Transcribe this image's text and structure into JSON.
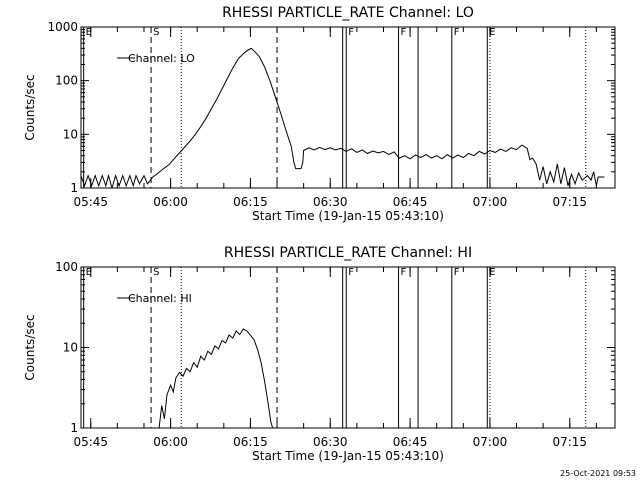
{
  "footer_timestamp": "25-Oct-2021 09:53",
  "colors": {
    "background": "#ffffff",
    "foreground": "#000000"
  },
  "chart_data": [
    {
      "type": "line",
      "title": "RHESSI PARTICLE_RATE Channel: LO",
      "xlabel": "Start Time (19-Jan-15 05:43:10)",
      "ylabel": "Counts/sec",
      "y_scale": "log",
      "ylim": [
        1,
        1000
      ],
      "xlim": [
        "05:43:10",
        "07:23:30"
      ],
      "y_ticks": [
        {
          "value": 1,
          "label": "1"
        },
        {
          "value": 10,
          "label": "10"
        },
        {
          "value": 100,
          "label": "100"
        },
        {
          "value": 1000,
          "label": "1000"
        }
      ],
      "x_ticks": [
        "05:45",
        "06:00",
        "06:15",
        "06:30",
        "06:45",
        "07:00",
        "07:15"
      ],
      "grid": false,
      "legend": {
        "position": "top-left",
        "label": "Channel: LO"
      },
      "series": [
        {
          "name": "Channel: LO",
          "points": [
            [
              "05:43:10",
              1.7
            ],
            [
              "05:43:50",
              1.1
            ],
            [
              "05:44:30",
              1.7
            ],
            [
              "05:45:10",
              1.1
            ],
            [
              "05:45:50",
              1.7
            ],
            [
              "05:46:30",
              1.1
            ],
            [
              "05:47:10",
              1.7
            ],
            [
              "05:47:50",
              1.1
            ],
            [
              "05:48:20",
              1.7
            ],
            [
              "05:49:00",
              1.0
            ],
            [
              "05:49:40",
              1.7
            ],
            [
              "05:50:20",
              1.1
            ],
            [
              "05:51:00",
              1.7
            ],
            [
              "05:51:40",
              1.1
            ],
            [
              "05:52:20",
              1.7
            ],
            [
              "05:53:00",
              1.1
            ],
            [
              "05:53:30",
              1.7
            ],
            [
              "05:54:10",
              1.2
            ],
            [
              "05:55:00",
              1.7
            ],
            [
              "05:55:40",
              1.2
            ],
            [
              "05:56:40",
              1.6
            ],
            [
              "05:57:40",
              1.9
            ],
            [
              "05:58:40",
              2.3
            ],
            [
              "05:59:40",
              2.7
            ],
            [
              "06:00:40",
              3.5
            ],
            [
              "06:01:40",
              4.5
            ],
            [
              "06:02:40",
              5.8
            ],
            [
              "06:03:40",
              7.5
            ],
            [
              "06:04:40",
              10
            ],
            [
              "06:05:40",
              14
            ],
            [
              "06:06:40",
              20
            ],
            [
              "06:07:40",
              30
            ],
            [
              "06:08:40",
              45
            ],
            [
              "06:09:40",
              70
            ],
            [
              "06:10:40",
              110
            ],
            [
              "06:11:40",
              170
            ],
            [
              "06:12:40",
              250
            ],
            [
              "06:13:40",
              320
            ],
            [
              "06:14:40",
              380
            ],
            [
              "06:15:10",
              400
            ],
            [
              "06:15:40",
              360
            ],
            [
              "06:16:40",
              280
            ],
            [
              "06:17:40",
              180
            ],
            [
              "06:18:40",
              100
            ],
            [
              "06:19:40",
              50
            ],
            [
              "06:20:40",
              25
            ],
            [
              "06:21:40",
              12
            ],
            [
              "06:22:40",
              6
            ],
            [
              "06:23:10",
              3.0
            ],
            [
              "06:23:30",
              2.3
            ],
            [
              "06:24:30",
              2.3
            ],
            [
              "06:24:50",
              3.0
            ],
            [
              "06:25:00",
              5.0
            ],
            [
              "06:26:00",
              5.6
            ],
            [
              "06:27:00",
              5.1
            ],
            [
              "06:28:00",
              5.7
            ],
            [
              "06:29:00",
              5.2
            ],
            [
              "06:30:00",
              5.6
            ],
            [
              "06:31:00",
              5.1
            ],
            [
              "06:32:00",
              5.5
            ],
            [
              "06:33:00",
              4.8
            ],
            [
              "06:34:00",
              5.4
            ],
            [
              "06:35:00",
              4.6
            ],
            [
              "06:36:00",
              5.1
            ],
            [
              "06:37:00",
              4.4
            ],
            [
              "06:38:00",
              4.9
            ],
            [
              "06:39:00",
              4.5
            ],
            [
              "06:40:00",
              4.8
            ],
            [
              "06:41:00",
              4.2
            ],
            [
              "06:42:00",
              4.7
            ],
            [
              "06:43:00",
              3.6
            ],
            [
              "06:44:00",
              4.0
            ],
            [
              "06:45:00",
              3.5
            ],
            [
              "06:46:00",
              4.1
            ],
            [
              "06:47:00",
              3.7
            ],
            [
              "06:48:00",
              4.2
            ],
            [
              "06:49:00",
              3.6
            ],
            [
              "06:50:00",
              4.0
            ],
            [
              "06:51:00",
              3.5
            ],
            [
              "06:52:00",
              4.2
            ],
            [
              "06:53:00",
              3.6
            ],
            [
              "06:54:00",
              4.1
            ],
            [
              "06:55:00",
              3.7
            ],
            [
              "06:56:00",
              4.4
            ],
            [
              "06:57:00",
              4.0
            ],
            [
              "06:58:00",
              4.8
            ],
            [
              "06:59:00",
              4.3
            ],
            [
              "07:00:00",
              5.0
            ],
            [
              "07:01:00",
              4.6
            ],
            [
              "07:02:00",
              5.3
            ],
            [
              "07:03:00",
              4.8
            ],
            [
              "07:04:00",
              5.6
            ],
            [
              "07:05:00",
              5.2
            ],
            [
              "07:06:00",
              6.3
            ],
            [
              "07:07:00",
              5.5
            ],
            [
              "07:07:30",
              3.4
            ],
            [
              "07:08:00",
              3.6
            ],
            [
              "07:08:40",
              2.8
            ],
            [
              "07:09:20",
              1.4
            ],
            [
              "07:10:00",
              2.5
            ],
            [
              "07:10:40",
              1.2
            ],
            [
              "07:11:20",
              2.0
            ],
            [
              "07:12:00",
              1.3
            ],
            [
              "07:12:40",
              2.8
            ],
            [
              "07:13:20",
              1.2
            ],
            [
              "07:14:00",
              2.4
            ],
            [
              "07:14:40",
              1.1
            ],
            [
              "07:15:20",
              1.8
            ],
            [
              "07:16:00",
              1.2
            ],
            [
              "07:16:40",
              1.9
            ],
            [
              "07:17:20",
              1.4
            ],
            [
              "07:18:20",
              1.7
            ],
            [
              "07:19:00",
              1.4
            ],
            [
              "07:19:30",
              2.0
            ],
            [
              "07:20:00",
              1.1
            ],
            [
              "07:20:20",
              1.6
            ],
            [
              "07:21:30",
              1.6
            ]
          ]
        }
      ],
      "markers": [
        {
          "time": "05:43:40",
          "style": "solid",
          "label": "E"
        },
        {
          "time": "05:56:20",
          "style": "dashed",
          "label": "S"
        },
        {
          "time": "06:02:00",
          "style": "dotted",
          "label": ""
        },
        {
          "time": "06:20:00",
          "style": "dashed",
          "label": ""
        },
        {
          "time": "06:32:20",
          "style": "solid",
          "label": ""
        },
        {
          "time": "06:33:00",
          "style": "solid",
          "label": "F"
        },
        {
          "time": "06:42:50",
          "style": "solid",
          "label": "F"
        },
        {
          "time": "06:46:30",
          "style": "solid",
          "label": ""
        },
        {
          "time": "06:52:50",
          "style": "solid",
          "label": "F"
        },
        {
          "time": "06:59:30",
          "style": "solid",
          "label": "E"
        },
        {
          "time": "07:00:00",
          "style": "dotted",
          "label": ""
        },
        {
          "time": "07:18:00",
          "style": "dotted",
          "label": ""
        }
      ]
    },
    {
      "type": "line",
      "title": "RHESSI PARTICLE_RATE Channel: HI",
      "xlabel": "Start Time (19-Jan-15 05:43:10)",
      "ylabel": "Counts/sec",
      "y_scale": "log",
      "ylim": [
        1,
        100
      ],
      "xlim": [
        "05:43:10",
        "07:23:30"
      ],
      "y_ticks": [
        {
          "value": 1,
          "label": "1"
        },
        {
          "value": 10,
          "label": "10"
        },
        {
          "value": 100,
          "label": "100"
        }
      ],
      "x_ticks": [
        "05:45",
        "06:00",
        "06:15",
        "06:30",
        "06:45",
        "07:00",
        "07:15"
      ],
      "grid": false,
      "legend": {
        "position": "top-left",
        "label": "Channel: HI"
      },
      "series": [
        {
          "name": "Channel: HI",
          "points": [
            [
              "05:57:50",
              1.0
            ],
            [
              "05:58:20",
              1.9
            ],
            [
              "05:58:50",
              1.3
            ],
            [
              "05:59:20",
              2.6
            ],
            [
              "06:00:00",
              3.4
            ],
            [
              "06:00:30",
              2.8
            ],
            [
              "06:01:00",
              4.2
            ],
            [
              "06:01:40",
              4.9
            ],
            [
              "06:02:20",
              4.4
            ],
            [
              "06:03:00",
              5.5
            ],
            [
              "06:03:40",
              5.0
            ],
            [
              "06:04:20",
              6.5
            ],
            [
              "06:05:00",
              5.7
            ],
            [
              "06:05:40",
              7.8
            ],
            [
              "06:06:20",
              7.0
            ],
            [
              "06:07:00",
              9.0
            ],
            [
              "06:07:40",
              8.2
            ],
            [
              "06:08:20",
              10.5
            ],
            [
              "06:09:00",
              9.6
            ],
            [
              "06:09:40",
              12.2
            ],
            [
              "06:10:20",
              11.4
            ],
            [
              "06:11:00",
              14.3
            ],
            [
              "06:11:40",
              13.1
            ],
            [
              "06:12:20",
              16.0
            ],
            [
              "06:13:00",
              14.5
            ],
            [
              "06:13:40",
              17.0
            ],
            [
              "06:14:20",
              16.0
            ],
            [
              "06:15:00",
              14.2
            ],
            [
              "06:15:40",
              12.5
            ],
            [
              "06:16:20",
              9.5
            ],
            [
              "06:17:00",
              6.5
            ],
            [
              "06:17:40",
              3.8
            ],
            [
              "06:18:20",
              2.0
            ],
            [
              "06:18:50",
              1.2
            ],
            [
              "06:19:10",
              1.0
            ]
          ]
        }
      ],
      "markers": [
        {
          "time": "05:43:40",
          "style": "solid",
          "label": "E"
        },
        {
          "time": "05:56:20",
          "style": "dashed",
          "label": "S"
        },
        {
          "time": "06:02:00",
          "style": "dotted",
          "label": ""
        },
        {
          "time": "06:20:00",
          "style": "dashed",
          "label": ""
        },
        {
          "time": "06:32:20",
          "style": "solid",
          "label": ""
        },
        {
          "time": "06:33:00",
          "style": "solid",
          "label": "F"
        },
        {
          "time": "06:42:50",
          "style": "solid",
          "label": "F"
        },
        {
          "time": "06:46:30",
          "style": "solid",
          "label": ""
        },
        {
          "time": "06:52:50",
          "style": "solid",
          "label": "F"
        },
        {
          "time": "06:59:30",
          "style": "solid",
          "label": "E"
        },
        {
          "time": "07:00:00",
          "style": "dotted",
          "label": ""
        },
        {
          "time": "07:18:00",
          "style": "dotted",
          "label": ""
        }
      ]
    }
  ]
}
